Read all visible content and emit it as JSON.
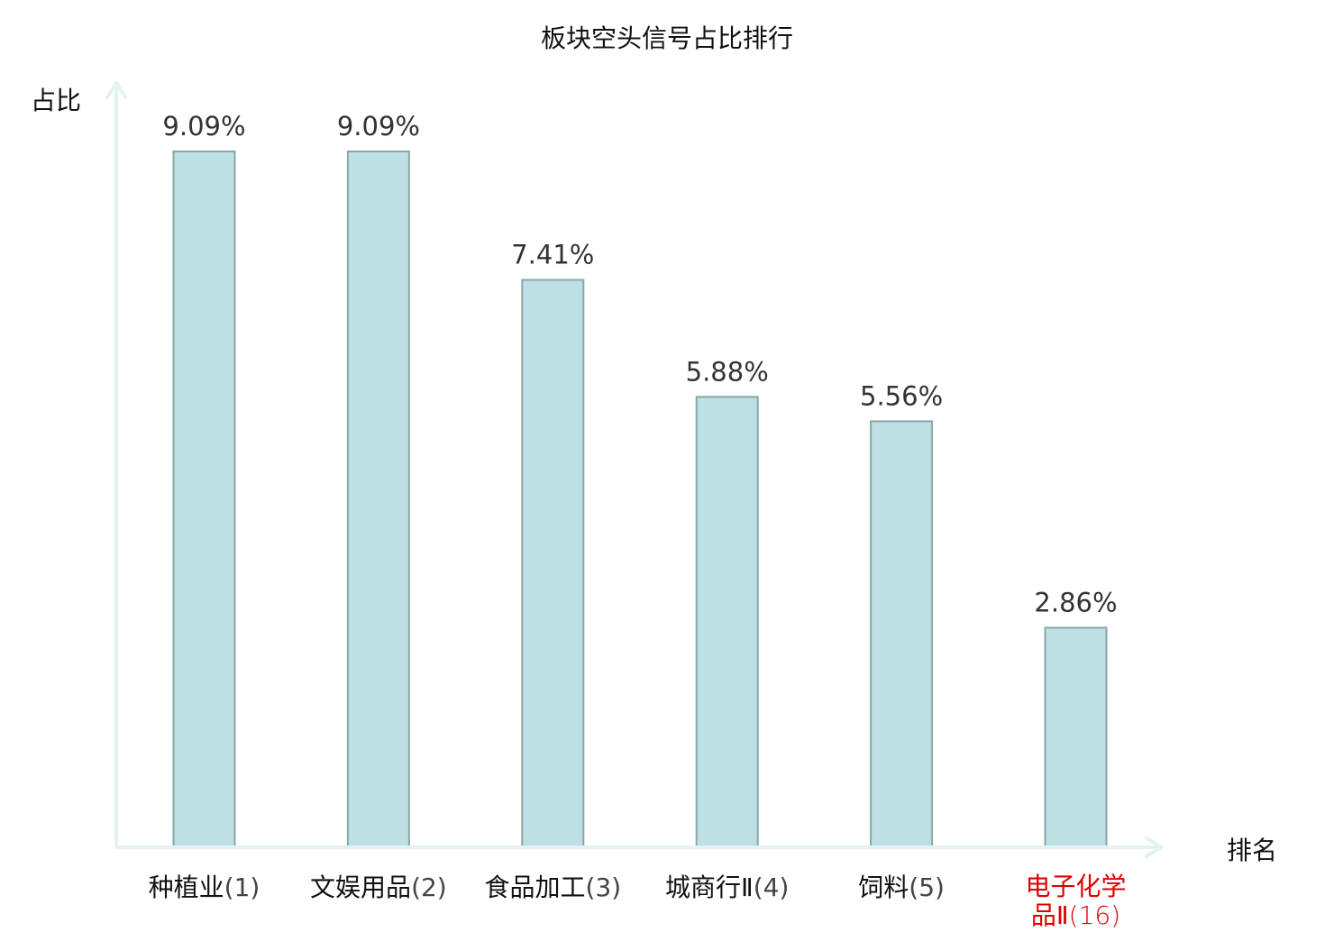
{
  "chart_data": {
    "type": "bar",
    "title": "板块空头信号占比排行",
    "ylabel": "占比",
    "xlabel": "排名",
    "categories": [
      {
        "name": "种植业",
        "rank": "(1)",
        "highlight": false
      },
      {
        "name": "文娱用品",
        "rank": "(2)",
        "highlight": false
      },
      {
        "name": "食品加工",
        "rank": "(3)",
        "highlight": false
      },
      {
        "name": "城商行Ⅱ",
        "rank": "(4)",
        "highlight": false
      },
      {
        "name": "饲料",
        "rank": "(5)",
        "highlight": false
      },
      {
        "name": "电子化学",
        "name_line2": "品Ⅱ",
        "rank": "(16)",
        "highlight": true
      }
    ],
    "values": [
      9.09,
      9.09,
      7.41,
      5.88,
      5.56,
      2.86
    ],
    "value_labels": [
      "9.09%",
      "9.09%",
      "7.41%",
      "5.88%",
      "5.56%",
      "2.86%"
    ],
    "unit": "%",
    "ylim": [
      0,
      9.09
    ],
    "grid": false,
    "legend": "none"
  },
  "colors": {
    "bar_fill": "#bce0e3",
    "bar_stroke": "#8aa6a8",
    "axis": "#e2f3f1",
    "text": "#111111",
    "value_label": "#333333",
    "highlight": "#dd0000"
  }
}
